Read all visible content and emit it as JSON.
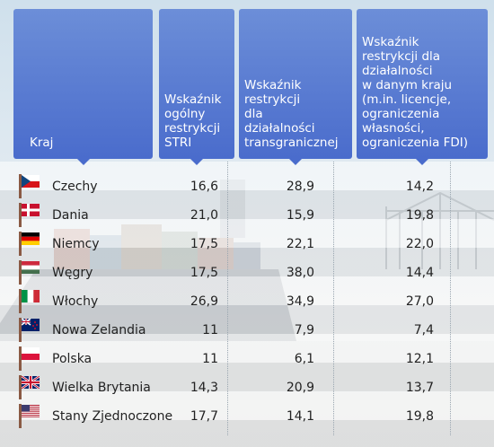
{
  "chart_data": {
    "type": "table",
    "columns": [
      "Kraj",
      "Wskaźnik ogólny restrykcji STRI",
      "Wskaźnik restrykcji dla działalności transgranicznej",
      "Wskaźnik restrykcji dla działalności w danym kraju (m.in. licencje, ograniczenia własności, ograniczenia FDI)"
    ],
    "header_lines": [
      [
        "Kraj"
      ],
      [
        "Wskaźnik",
        "ogólny",
        "restrykcji",
        "STRI"
      ],
      [
        "Wskaźnik",
        "restrykcji",
        "dla",
        "działalności",
        "transgranicznej"
      ],
      [
        "Wskaźnik",
        "restrykcji dla",
        "działalności",
        "w danym kraju",
        "(m.in. licencje,",
        "ograniczenia",
        "własności,",
        "ograniczenia FDI)"
      ]
    ],
    "rows": [
      {
        "country": "Czechy",
        "flag": "czech-flag-icon",
        "stri": "16,6",
        "cross_border": "28,9",
        "domestic": "14,2"
      },
      {
        "country": "Dania",
        "flag": "denmark-flag-icon",
        "stri": "21,0",
        "cross_border": "15,9",
        "domestic": "19,8"
      },
      {
        "country": "Niemcy",
        "flag": "germany-flag-icon",
        "stri": "17,5",
        "cross_border": "22,1",
        "domestic": "22,0"
      },
      {
        "country": "Węgry",
        "flag": "hungary-flag-icon",
        "stri": "17,5",
        "cross_border": "38,0",
        "domestic": "14,4"
      },
      {
        "country": "Włochy",
        "flag": "italy-flag-icon",
        "stri": "26,9",
        "cross_border": "34,9",
        "domestic": "27,0"
      },
      {
        "country": "Nowa Zelandia",
        "flag": "new-zealand-flag-icon",
        "stri": "11",
        "cross_border": "7,9",
        "domestic": "7,4"
      },
      {
        "country": "Polska",
        "flag": "poland-flag-icon",
        "stri": "11",
        "cross_border": "6,1",
        "domestic": "12,1"
      },
      {
        "country": "Wielka Brytania",
        "flag": "uk-flag-icon",
        "stri": "14,3",
        "cross_border": "20,9",
        "domestic": "13,7"
      },
      {
        "country": "Stany Zjednoczone",
        "flag": "usa-flag-icon",
        "stri": "17,7",
        "cross_border": "14,1",
        "domestic": "19,8"
      }
    ]
  },
  "colors": {
    "header_top": "#6c8ed8",
    "header_bottom": "#4a6ccc",
    "text": "#222222"
  }
}
